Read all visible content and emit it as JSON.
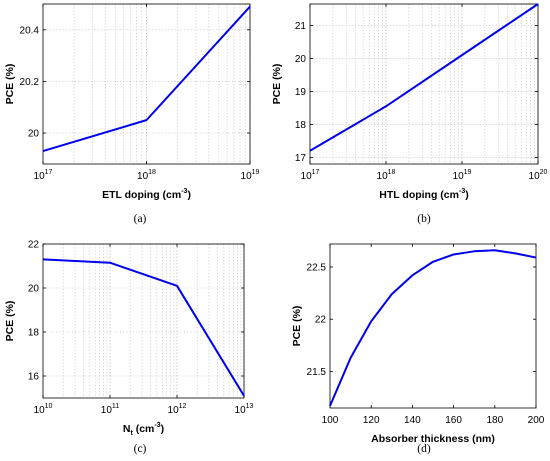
{
  "chart_data": [
    {
      "type": "line",
      "caption": "(a)",
      "xlabel": {
        "main": "ETL doping (cm",
        "sup": "-3",
        "end": ")"
      },
      "ylabel": "PCE (%)",
      "xscale": "log",
      "x": [
        1e+17,
        1e+18,
        1e+19
      ],
      "series": [
        {
          "values": [
            19.93,
            20.05,
            20.49
          ],
          "color": "#0000ee"
        }
      ],
      "xlim": [
        1e+17,
        1e+19
      ],
      "ylim": [
        19.88,
        20.5
      ],
      "xticks": [
        {
          "value": 1e+17,
          "base": "10",
          "exp": "17"
        },
        {
          "value": 1e+18,
          "base": "10",
          "exp": "18"
        },
        {
          "value": 1e+19,
          "base": "10",
          "exp": "19"
        }
      ],
      "yticks": [
        {
          "value": 20,
          "label": "20"
        },
        {
          "value": 20.2,
          "label": "20.2"
        },
        {
          "value": 20.4,
          "label": "20.4"
        }
      ],
      "grid": true
    },
    {
      "type": "line",
      "caption": "(b)",
      "xlabel": {
        "main": "HTL doping (cm",
        "sup": "-3",
        "end": ")"
      },
      "ylabel": "PCE (%)",
      "xscale": "log",
      "x": [
        1e+17,
        1e+18,
        1e+19,
        1e+20
      ],
      "series": [
        {
          "values": [
            17.2,
            18.55,
            20.1,
            21.65
          ],
          "color": "#0000ee"
        }
      ],
      "xlim": [
        1e+17,
        1e+20
      ],
      "ylim": [
        16.8,
        21.65
      ],
      "xticks": [
        {
          "value": 1e+17,
          "base": "10",
          "exp": "17"
        },
        {
          "value": 1e+18,
          "base": "10",
          "exp": "18"
        },
        {
          "value": 1e+19,
          "base": "10",
          "exp": "19"
        },
        {
          "value": 1e+20,
          "base": "10",
          "exp": "20"
        }
      ],
      "yticks": [
        {
          "value": 17,
          "label": "17"
        },
        {
          "value": 18,
          "label": "18"
        },
        {
          "value": 19,
          "label": "19"
        },
        {
          "value": 20,
          "label": "20"
        },
        {
          "value": 21,
          "label": "21"
        }
      ],
      "grid": true
    },
    {
      "type": "line",
      "caption": "(c)",
      "xlabel": {
        "main": "N",
        "sub": "t",
        "mid": " (cm",
        "sup": "-3",
        "end": ")"
      },
      "ylabel": "PCE (%)",
      "xscale": "log",
      "x": [
        10000000000.0,
        100000000000.0,
        1000000000000.0,
        10000000000000.0
      ],
      "series": [
        {
          "values": [
            21.3,
            21.15,
            20.1,
            15.1
          ],
          "color": "#0000ee"
        }
      ],
      "xlim": [
        10000000000.0,
        10000000000000.0
      ],
      "ylim": [
        15,
        22
      ],
      "xticks": [
        {
          "value": 10000000000.0,
          "base": "10",
          "exp": "10"
        },
        {
          "value": 100000000000.0,
          "base": "10",
          "exp": "11"
        },
        {
          "value": 1000000000000.0,
          "base": "10",
          "exp": "12"
        },
        {
          "value": 10000000000000.0,
          "base": "10",
          "exp": "13"
        }
      ],
      "yticks": [
        {
          "value": 16,
          "label": "16"
        },
        {
          "value": 18,
          "label": "18"
        },
        {
          "value": 20,
          "label": "20"
        },
        {
          "value": 22,
          "label": "22"
        }
      ],
      "grid": true
    },
    {
      "type": "line",
      "caption": "(d)",
      "xlabel": {
        "main": "Absorber thickness (nm)"
      },
      "ylabel": "PCE (%)",
      "xscale": "linear",
      "x": [
        100,
        110,
        120,
        130,
        140,
        150,
        160,
        170,
        180,
        190,
        200
      ],
      "series": [
        {
          "values": [
            21.17,
            21.63,
            21.98,
            22.24,
            22.42,
            22.55,
            22.62,
            22.65,
            22.66,
            22.63,
            22.59
          ],
          "color": "#0000ee"
        }
      ],
      "xlim": [
        100,
        200
      ],
      "ylim": [
        21.15,
        22.72
      ],
      "xticks": [
        {
          "value": 100,
          "label": "100"
        },
        {
          "value": 120,
          "label": "120"
        },
        {
          "value": 140,
          "label": "140"
        },
        {
          "value": 160,
          "label": "160"
        },
        {
          "value": 180,
          "label": "180"
        },
        {
          "value": 200,
          "label": "200"
        }
      ],
      "yticks": [
        {
          "value": 21.5,
          "label": "21.5"
        },
        {
          "value": 22,
          "label": "22"
        },
        {
          "value": 22.5,
          "label": "22.5"
        }
      ],
      "grid": false
    }
  ]
}
